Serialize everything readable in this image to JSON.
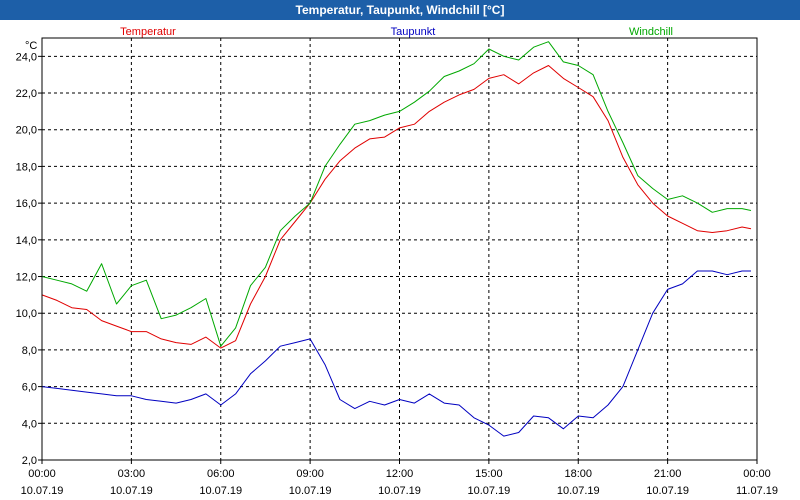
{
  "window": {
    "title": "Temperatur, Taupunkt, Windchill [°C]"
  },
  "chart_data": {
    "type": "line",
    "title": "Temperatur, Taupunkt, Windchill [°C]",
    "ylabel": "°C",
    "xlabel": "",
    "ylim": [
      2.0,
      25.0
    ],
    "yticks": [
      2.0,
      4.0,
      6.0,
      8.0,
      10.0,
      12.0,
      14.0,
      16.0,
      18.0,
      20.0,
      22.0,
      24.0
    ],
    "ytick_labels": [
      "2,0",
      "4,0",
      "6,0",
      "8,0",
      "10,0",
      "12,0",
      "14,0",
      "16,0",
      "18,0",
      "20,0",
      "22,0",
      "24,0"
    ],
    "xlim_hours": [
      0,
      24
    ],
    "xticks_hours": [
      0,
      3,
      6,
      9,
      12,
      15,
      18,
      21,
      24
    ],
    "xtick_time_labels": [
      "00:00",
      "03:00",
      "06:00",
      "09:00",
      "12:00",
      "15:00",
      "18:00",
      "21:00",
      "00:00"
    ],
    "xtick_date_labels": [
      "10.07.19",
      "10.07.19",
      "10.07.19",
      "10.07.19",
      "10.07.19",
      "10.07.19",
      "10.07.19",
      "10.07.19",
      "11.07.19"
    ],
    "grid": true,
    "legend": [
      "Temperatur",
      "Taupunkt",
      "Windchill"
    ],
    "series": [
      {
        "name": "Temperatur",
        "color": "#e00000",
        "x": [
          0,
          0.5,
          1,
          1.5,
          2,
          2.5,
          3,
          3.5,
          4,
          4.5,
          5,
          5.5,
          6,
          6.5,
          7,
          7.5,
          8,
          8.5,
          9,
          9.5,
          10,
          10.5,
          11,
          11.5,
          12,
          12.5,
          13,
          13.5,
          14,
          14.5,
          15,
          15.5,
          16,
          16.5,
          17,
          17.5,
          18,
          18.5,
          19,
          19.5,
          20,
          20.5,
          21,
          21.5,
          22,
          22.5,
          23,
          23.5,
          23.8
        ],
        "values": [
          11.0,
          10.7,
          10.3,
          10.2,
          9.6,
          9.3,
          9.0,
          9.0,
          8.6,
          8.4,
          8.3,
          8.7,
          8.1,
          8.5,
          10.5,
          12.0,
          14.0,
          15.0,
          16.0,
          17.3,
          18.3,
          19.0,
          19.5,
          19.6,
          20.1,
          20.3,
          21.0,
          21.5,
          21.9,
          22.2,
          22.8,
          23.0,
          22.5,
          23.1,
          23.5,
          22.8,
          22.3,
          21.8,
          20.5,
          18.5,
          17.0,
          16.0,
          15.3,
          14.9,
          14.5,
          14.4,
          14.5,
          14.7,
          14.6
        ]
      },
      {
        "name": "Taupunkt",
        "color": "#0000c0",
        "x": [
          0,
          0.5,
          1,
          1.5,
          2,
          2.5,
          3,
          3.5,
          4,
          4.5,
          5,
          5.5,
          6,
          6.5,
          7,
          7.5,
          8,
          8.5,
          9,
          9.5,
          10,
          10.5,
          11,
          11.5,
          12,
          12.5,
          13,
          13.5,
          14,
          14.5,
          15,
          15.5,
          16,
          16.5,
          17,
          17.5,
          18,
          18.5,
          19,
          19.5,
          20,
          20.5,
          21,
          21.5,
          22,
          22.5,
          23,
          23.5,
          23.8
        ],
        "values": [
          6.0,
          5.9,
          5.8,
          5.7,
          5.6,
          5.5,
          5.5,
          5.3,
          5.2,
          5.1,
          5.3,
          5.6,
          5.0,
          5.6,
          6.7,
          7.4,
          8.2,
          8.4,
          8.6,
          7.2,
          5.3,
          4.8,
          5.2,
          5.0,
          5.3,
          5.1,
          5.6,
          5.1,
          5.0,
          4.3,
          3.9,
          3.3,
          3.5,
          4.4,
          4.3,
          3.7,
          4.4,
          4.3,
          5.0,
          6.0,
          8.0,
          10.0,
          11.3,
          11.6,
          12.3,
          12.3,
          12.1,
          12.3,
          12.3
        ]
      },
      {
        "name": "Windchill",
        "color": "#00a800",
        "x": [
          0,
          0.5,
          1,
          1.5,
          2,
          2.5,
          3,
          3.5,
          4,
          4.5,
          5,
          5.5,
          6,
          6.5,
          7,
          7.5,
          8,
          8.5,
          9,
          9.5,
          10,
          10.5,
          11,
          11.5,
          12,
          12.5,
          13,
          13.5,
          14,
          14.5,
          15,
          15.5,
          16,
          16.5,
          17,
          17.5,
          18,
          18.5,
          19,
          19.5,
          20,
          20.5,
          21,
          21.5,
          22,
          22.5,
          23,
          23.5,
          23.8
        ],
        "values": [
          12.0,
          11.8,
          11.6,
          11.2,
          12.7,
          10.5,
          11.5,
          11.8,
          9.7,
          9.9,
          10.3,
          10.8,
          8.2,
          9.2,
          11.5,
          12.5,
          14.5,
          15.3,
          16.0,
          18.0,
          19.2,
          20.3,
          20.5,
          20.8,
          21.0,
          21.5,
          22.1,
          22.9,
          23.2,
          23.6,
          24.4,
          24.0,
          23.8,
          24.5,
          24.8,
          23.7,
          23.5,
          23.0,
          21.0,
          19.3,
          17.5,
          16.8,
          16.2,
          16.4,
          16.0,
          15.5,
          15.7,
          15.7,
          15.6
        ]
      }
    ]
  }
}
